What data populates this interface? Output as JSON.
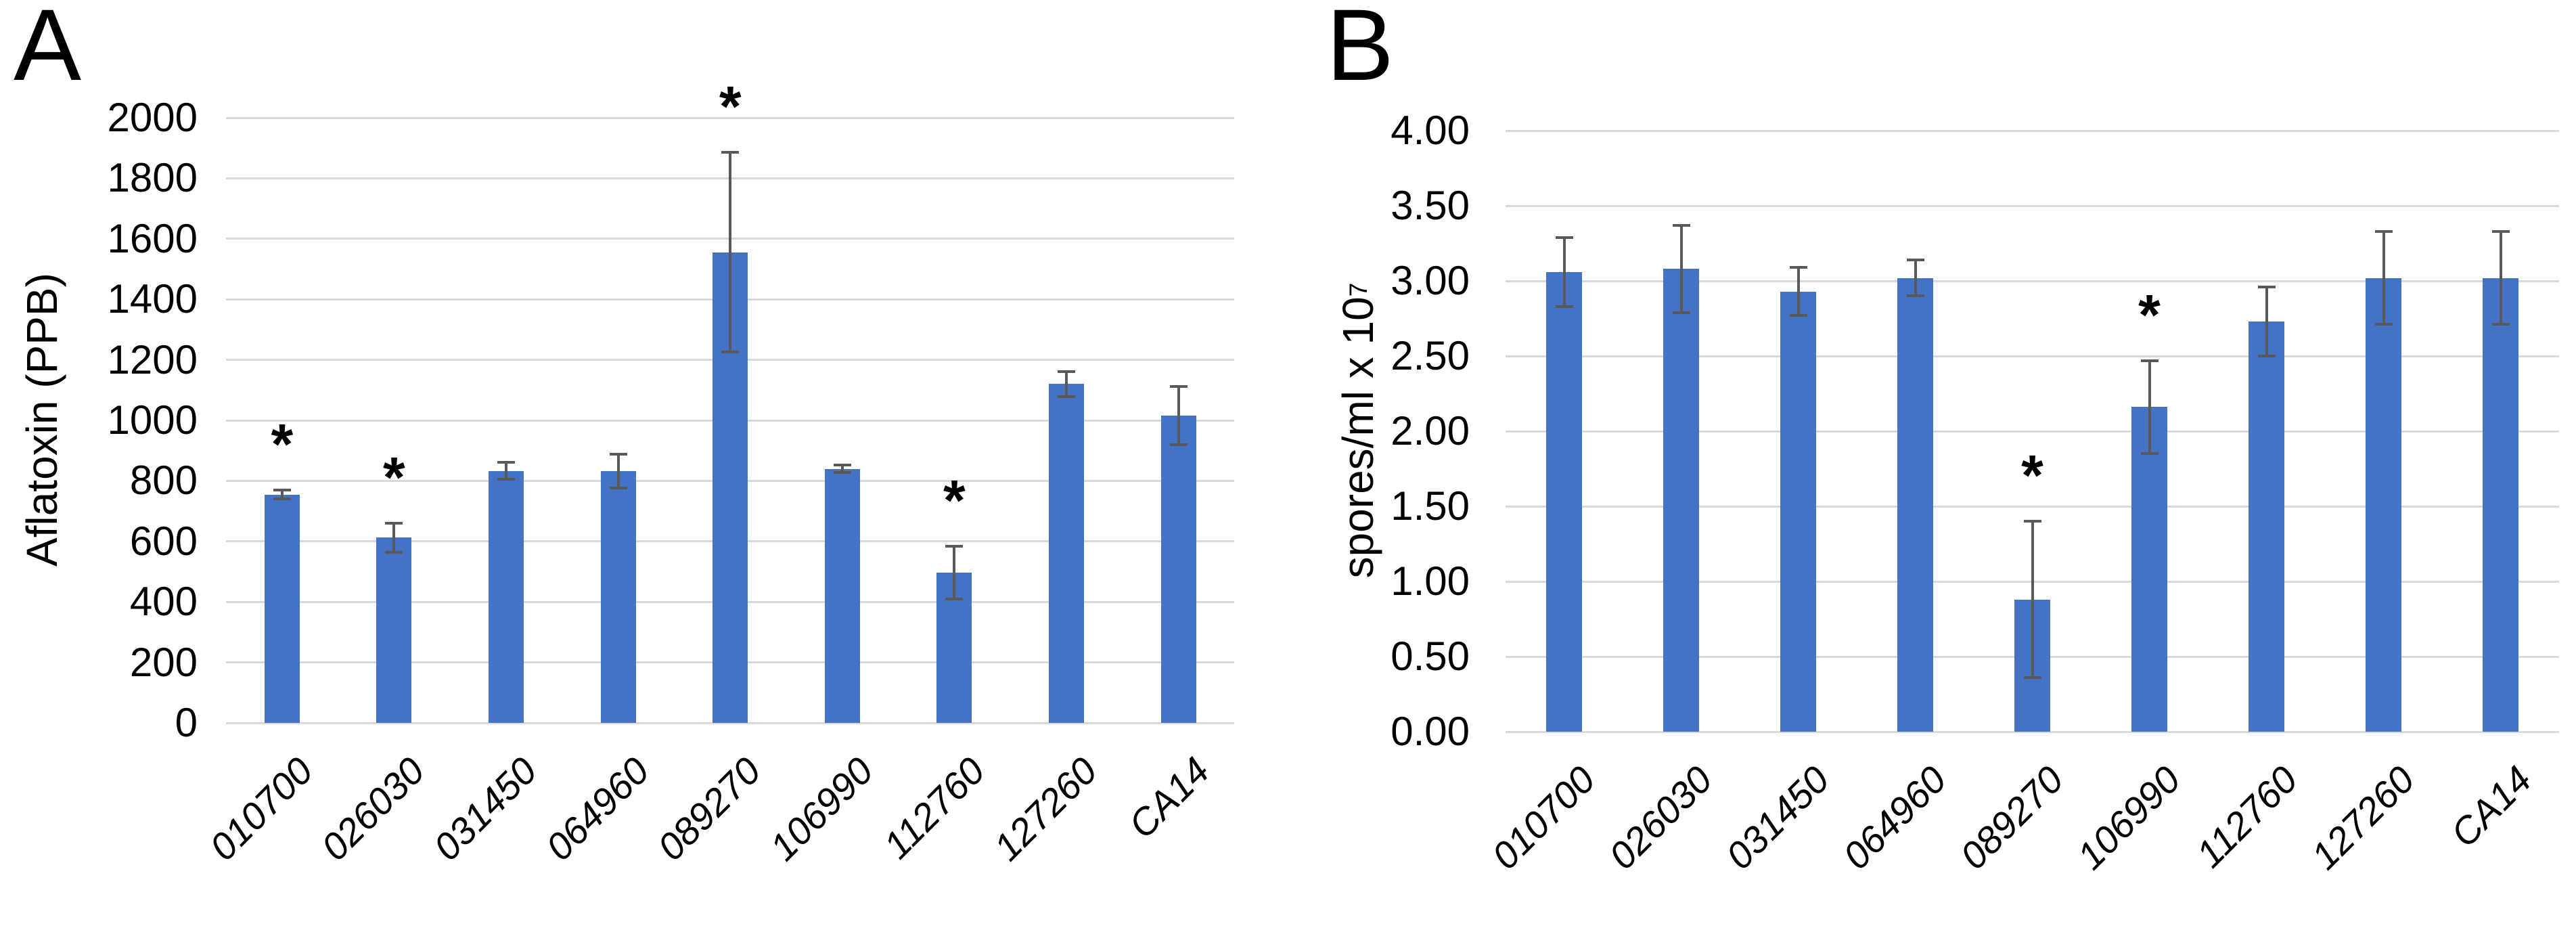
{
  "figure": {
    "background": "#FFFFFF",
    "description_visible_text_only": true
  },
  "colors": {
    "bar": "#4472C4",
    "error_bar": "#595959",
    "gridline": "#D9D9D9",
    "text": "#000000",
    "background": "#FFFFFF"
  },
  "significance_marker": "*",
  "chart_data": [
    {
      "panel_label": "A",
      "type": "bar",
      "title": "",
      "ylabel": "Aflatoxin (PPB)",
      "ylabel_sup": "",
      "xlabel": "",
      "categories": [
        "010700",
        "026030",
        "031450",
        "064960",
        "089270",
        "106990",
        "112760",
        "127260",
        "CA14"
      ],
      "values": [
        755,
        612,
        833,
        833,
        1555,
        840,
        497,
        1120,
        1015
      ],
      "errors": [
        15,
        48,
        28,
        56,
        330,
        12,
        87,
        42,
        96
      ],
      "significant": [
        true,
        true,
        false,
        false,
        true,
        false,
        true,
        false,
        false
      ],
      "ylim": [
        0,
        2000
      ],
      "ytick_step": 200,
      "ytick_labels": [
        "0",
        "200",
        "400",
        "600",
        "800",
        "1000",
        "1200",
        "1400",
        "1600",
        "1800",
        "2000"
      ],
      "grid": true,
      "legend": "none"
    },
    {
      "panel_label": "B",
      "type": "bar",
      "title": "",
      "ylabel": "spores/ml x 10",
      "ylabel_sup": "7",
      "xlabel": "",
      "categories": [
        "010700",
        "026030",
        "031450",
        "064960",
        "089270",
        "106990",
        "112760",
        "127260",
        "CA14"
      ],
      "values": [
        3.06,
        3.08,
        2.93,
        3.02,
        0.88,
        2.16,
        2.73,
        3.02,
        3.02
      ],
      "errors": [
        0.23,
        0.29,
        0.16,
        0.12,
        0.52,
        0.31,
        0.23,
        0.31,
        0.31
      ],
      "significant": [
        false,
        false,
        false,
        false,
        true,
        true,
        false,
        false,
        false
      ],
      "ylim": [
        0,
        4
      ],
      "ytick_step": 0.5,
      "ytick_labels": [
        "0.00",
        "0.50",
        "1.00",
        "1.50",
        "2.00",
        "2.50",
        "3.00",
        "3.50",
        "4.00"
      ],
      "grid": true,
      "legend": "none"
    }
  ]
}
